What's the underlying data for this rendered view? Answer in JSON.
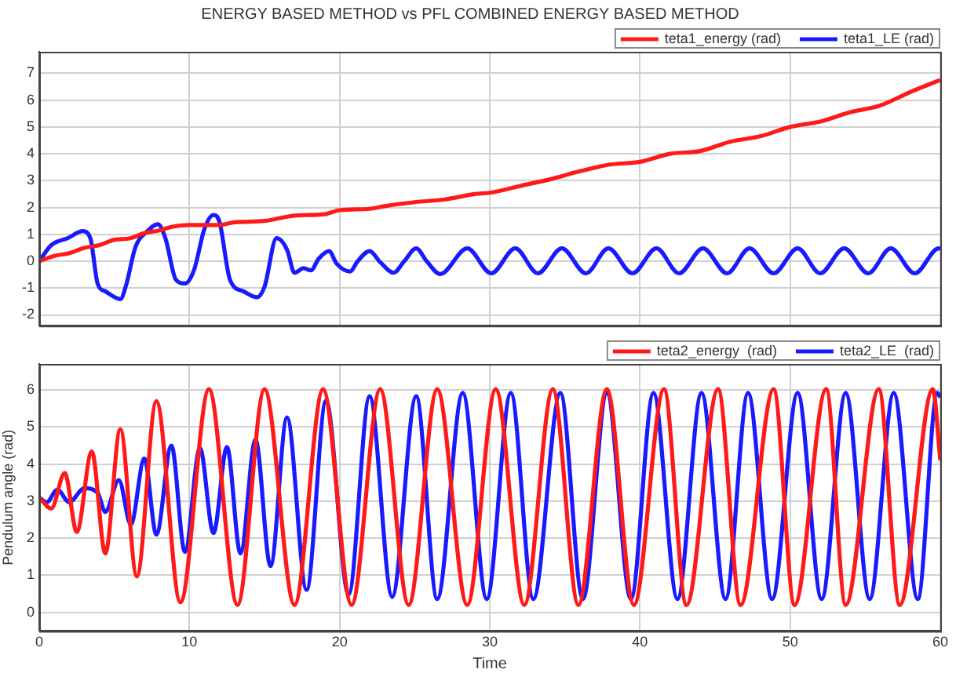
{
  "chart_data": [
    {
      "type": "line",
      "title": "ENERGY BASED METHOD vs PFL COMBINED ENERGY BASED METHOD",
      "xlim": [
        0,
        60
      ],
      "xticks": [
        0,
        10,
        20,
        30,
        40,
        50,
        60
      ],
      "ylim": [
        -2.4,
        7.8
      ],
      "yticks": [
        -2,
        -1,
        0,
        1,
        2,
        3,
        4,
        5,
        6,
        7
      ],
      "grid": true,
      "legend": "top right",
      "tick_labels": "y",
      "series": [
        {
          "name": "teta1_energy (rad)",
          "color": "#ff1a1a",
          "x": [
            0,
            1,
            2,
            3,
            4,
            5,
            6,
            7,
            8,
            9,
            10,
            12,
            13,
            15,
            17,
            19,
            20,
            22,
            23,
            25,
            27,
            29,
            30,
            32,
            34,
            36,
            38,
            40,
            42,
            44,
            46,
            48,
            50,
            52,
            54,
            56,
            58,
            60
          ],
          "values": [
            0,
            0.2,
            0.3,
            0.5,
            0.6,
            0.8,
            0.85,
            1.05,
            1.15,
            1.3,
            1.35,
            1.35,
            1.45,
            1.5,
            1.7,
            1.75,
            1.9,
            1.95,
            2.05,
            2.2,
            2.3,
            2.5,
            2.55,
            2.8,
            3.05,
            3.35,
            3.6,
            3.7,
            4.0,
            4.1,
            4.45,
            4.65,
            5.0,
            5.2,
            5.55,
            5.8,
            6.3,
            6.75
          ]
        },
        {
          "name": "teta1_LE (rad)",
          "color": "#1a1aff",
          "x": [
            0,
            0.8,
            1.9,
            2.9,
            3.4,
            3.9,
            4.4,
            5.4,
            5.8,
            6.4,
            7.2,
            7.9,
            8.4,
            9.1,
            9.7,
            10.3,
            11.0,
            11.6,
            12.0,
            12.7,
            13.6,
            14.5,
            15.0,
            15.8,
            16.5,
            17.0,
            17.6,
            18.1,
            18.6,
            19.3,
            19.8,
            20.7,
            21.2,
            22.0,
            22.7,
            23.6,
            24.3,
            25.1,
            25.8,
            26.7,
            28.5,
            30.1,
            31.7,
            33.2,
            34.8,
            36.4,
            37.9,
            39.5,
            41.1,
            42.6,
            44.2,
            45.8,
            47.3,
            48.9,
            50.5,
            52.0,
            53.6,
            55.2,
            56.7,
            58.3,
            59.9,
            60
          ],
          "values": [
            0,
            0.6,
            0.86,
            1.12,
            0.86,
            -0.86,
            -1.12,
            -1.41,
            -0.86,
            0.52,
            1.12,
            1.38,
            0.86,
            -0.69,
            -0.83,
            -0.34,
            1.2,
            1.72,
            1.47,
            -0.69,
            -1.12,
            -1.34,
            -0.95,
            0.86,
            0.43,
            -0.43,
            -0.26,
            -0.34,
            0.09,
            0.38,
            -0.09,
            -0.38,
            0,
            0.38,
            -0.03,
            -0.43,
            0,
            0.48,
            0,
            -0.48,
            0.48,
            -0.45,
            0.48,
            -0.45,
            0.48,
            -0.45,
            0.48,
            -0.45,
            0.48,
            -0.45,
            0.48,
            -0.45,
            0.48,
            -0.45,
            0.48,
            -0.45,
            0.48,
            -0.45,
            0.48,
            -0.45,
            0.48,
            0.45
          ]
        }
      ]
    },
    {
      "type": "line",
      "xlabel": "Time",
      "ylabel": "Pendulum angle (rad)",
      "xlim": [
        0,
        60
      ],
      "xticks": [
        0,
        10,
        20,
        30,
        40,
        50,
        60
      ],
      "ylim": [
        -0.5,
        6.7
      ],
      "yticks": [
        0,
        1,
        2,
        3,
        4,
        5,
        6
      ],
      "grid": true,
      "legend": "top right",
      "series": [
        {
          "name": "teta2_energy  (rad)",
          "color": "#ff1a1a",
          "x": [
            0,
            0.8,
            1.7,
            2.5,
            3.5,
            4.4,
            5.4,
            6.5,
            7.8,
            9.4,
            11.3,
            13.2,
            15.0,
            17.0,
            18.9,
            20.8,
            22.7,
            24.6,
            26.5,
            28.5,
            30.4,
            32.3,
            34.2,
            35.9,
            37.8,
            39.6,
            41.6,
            43.1,
            45.2,
            46.7,
            48.9,
            50.3,
            52.4,
            53.7,
            55.9,
            57.3,
            59.5,
            60
          ],
          "values": [
            3.1,
            2.8,
            3.76,
            2.17,
            4.34,
            1.59,
            4.94,
            0.97,
            5.7,
            0.27,
            6.02,
            0.2,
            6.02,
            0.2,
            6.02,
            0.2,
            6.02,
            0.2,
            6.02,
            0.2,
            6.02,
            0.2,
            6.02,
            0.2,
            6.02,
            0.2,
            6.02,
            0.2,
            6.02,
            0.2,
            6.02,
            0.2,
            6.02,
            0.2,
            6.02,
            0.2,
            6.02,
            4.1
          ]
        },
        {
          "name": "teta2_LE  (rad)",
          "color": "#1a1aff",
          "x": [
            0,
            0.5,
            1.2,
            2.0,
            3.0,
            3.9,
            4.4,
            5.3,
            6.1,
            7.0,
            7.8,
            8.8,
            9.7,
            10.7,
            11.6,
            12.5,
            13.4,
            14.4,
            15.4,
            16.5,
            17.8,
            19.1,
            20.6,
            22.0,
            23.5,
            25.1,
            26.5,
            28.2,
            29.8,
            31.4,
            32.9,
            34.7,
            36.2,
            37.8,
            39.4,
            40.9,
            42.5,
            44.1,
            45.7,
            47.2,
            48.8,
            50.5,
            52.1,
            53.7,
            55.3,
            56.9,
            58.5,
            59.8,
            60
          ],
          "values": [
            3.1,
            2.97,
            3.31,
            2.97,
            3.35,
            3.22,
            2.71,
            3.57,
            2.37,
            4.15,
            2.1,
            4.5,
            1.63,
            4.43,
            2.14,
            4.46,
            1.59,
            4.66,
            1.25,
            5.26,
            0.61,
            5.71,
            0.48,
            5.83,
            0.42,
            5.83,
            0.36,
            5.92,
            0.36,
            5.92,
            0.36,
            5.92,
            0.36,
            5.92,
            0.36,
            5.92,
            0.36,
            5.92,
            0.36,
            5.92,
            0.36,
            5.92,
            0.36,
            5.92,
            0.36,
            5.92,
            0.36,
            5.92,
            5.8
          ]
        }
      ]
    }
  ]
}
